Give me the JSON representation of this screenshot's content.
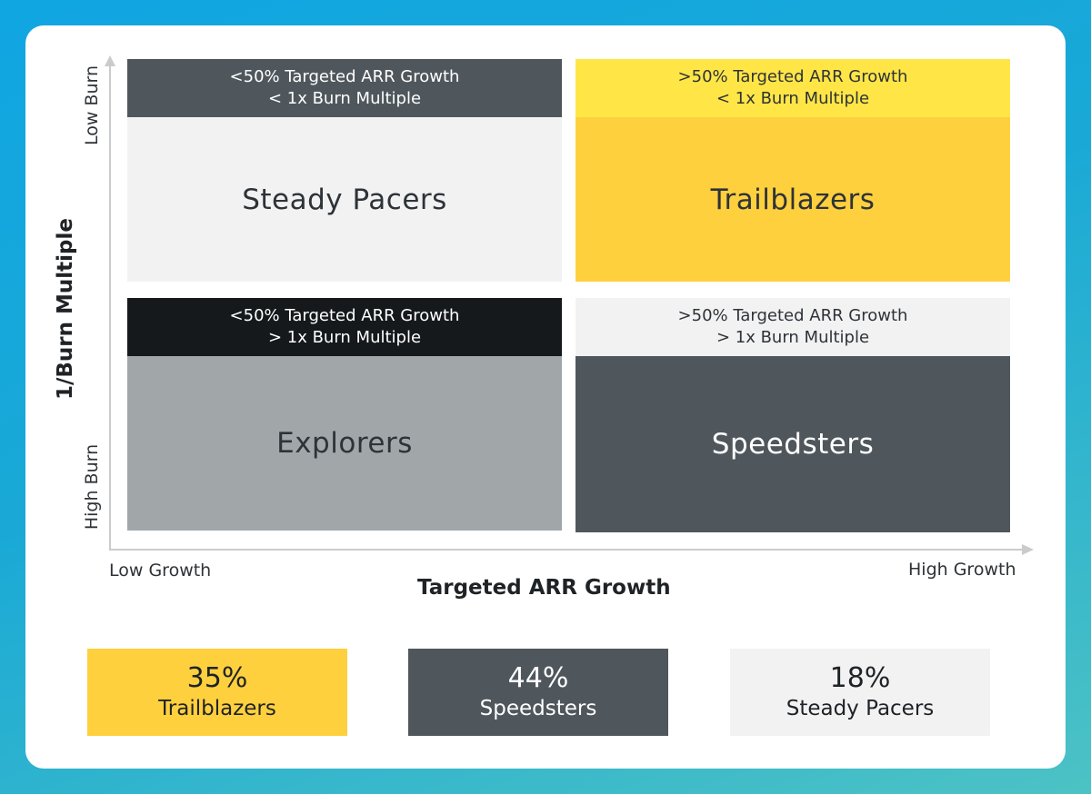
{
  "axes": {
    "y_title": "1/Burn Multiple",
    "y_low_end": "High Burn",
    "y_high_end": "Low Burn",
    "x_title": "Targeted ARR Growth",
    "x_low_end": "Low Growth",
    "x_high_end": "High Growth"
  },
  "quadrants": {
    "top_left": {
      "line1": "<50% Targeted ARR Growth",
      "line2": "< 1x Burn Multiple",
      "name": "Steady Pacers"
    },
    "top_right": {
      "line1": ">50% Targeted ARR Growth",
      "line2": "< 1x Burn Multiple",
      "name": "Trailblazers"
    },
    "bottom_left": {
      "line1": "<50% Targeted ARR Growth",
      "line2": "> 1x Burn Multiple",
      "name": "Explorers"
    },
    "bottom_right": {
      "line1": ">50% Targeted ARR Growth",
      "line2": "> 1x Burn Multiple",
      "name": "Speedsters"
    }
  },
  "stats": [
    {
      "percent": "35%",
      "label": "Trailblazers"
    },
    {
      "percent": "44%",
      "label": "Speedsters"
    },
    {
      "percent": "18%",
      "label": "Steady Pacers"
    }
  ],
  "colors": {
    "yellow": "#ffd03d",
    "light_yellow": "#ffe646",
    "dark_gray": "#4f575d",
    "black": "#16191c",
    "mid_gray": "#a1a7a9",
    "light_gray": "#f2f2f3"
  }
}
